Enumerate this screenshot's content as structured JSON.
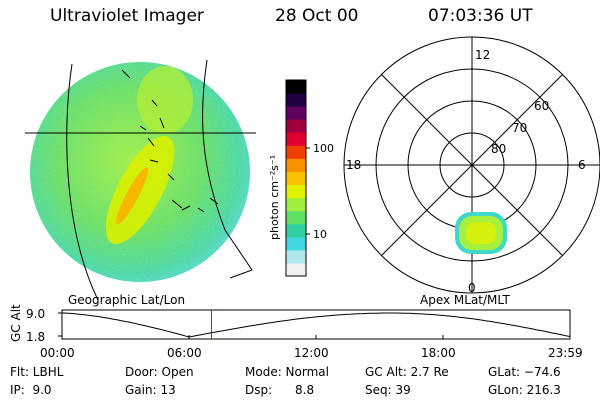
{
  "header": {
    "instrument": "Ultraviolet Imager",
    "date": "28 Oct 00",
    "time": "07:03:36 UT"
  },
  "colorbar": {
    "label": "photon cm⁻²s⁻¹",
    "ticks": [
      "100",
      "10"
    ],
    "colors": [
      "#f0f0f0",
      "#b0e8f0",
      "#40d8e0",
      "#30d0a0",
      "#60e060",
      "#a0f040",
      "#e0f000",
      "#f8c000",
      "#f89000",
      "#f04000",
      "#e00030",
      "#a00040",
      "#600060",
      "#200040",
      "#000000"
    ]
  },
  "left_panel": {
    "caption": "Geographic Lat/Lon"
  },
  "right_panel": {
    "caption": "Apex MLat/MLT",
    "mlt_labels": {
      "top": "12",
      "left": "18",
      "right": "6",
      "bottom": "0"
    },
    "lat_labels": [
      "60",
      "70",
      "80"
    ]
  },
  "altitude_plot": {
    "ylabel": "GC Alt",
    "yticks": [
      "9.0",
      "1.8"
    ],
    "xticks": [
      "00:00",
      "06:00",
      "12:00",
      "18:00",
      "23:59"
    ],
    "current_time_hours": 7.06
  },
  "footer": {
    "flt": "Flt: LBHL",
    "ip": "IP:  9.0",
    "door": "Door: Open",
    "gain": "Gain: 13",
    "mode": "Mode: Normal",
    "dsp": "Dsp:      8.8",
    "gcalt": "GC Alt: 2.7 Re",
    "seq": "Seq: 39",
    "glat": "GLat: −74.6",
    "glon": "GLon: 216.3"
  }
}
